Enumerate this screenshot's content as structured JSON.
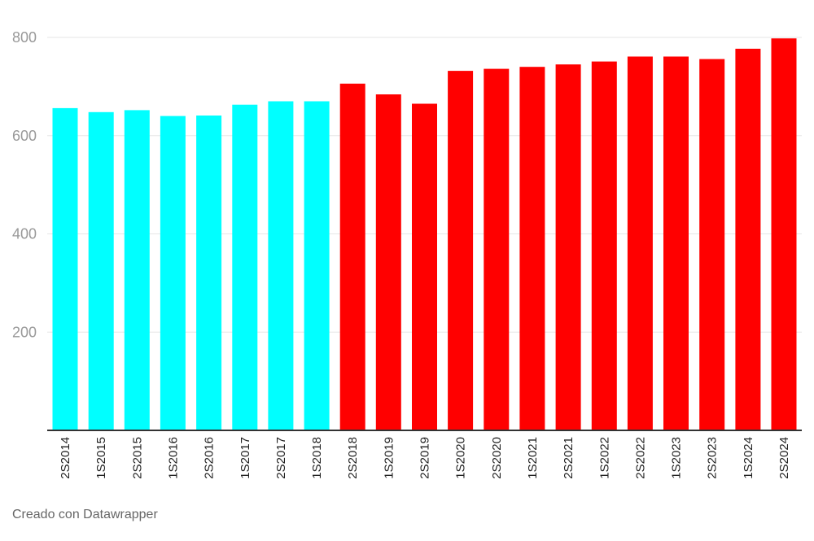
{
  "chart_data": {
    "type": "bar",
    "title": "",
    "xlabel": "",
    "ylabel": "",
    "ylim": [
      0,
      800
    ],
    "yticks": [
      200,
      400,
      600,
      800
    ],
    "grid": true,
    "categories": [
      "2S2014",
      "1S2015",
      "2S2015",
      "1S2016",
      "2S2016",
      "1S2017",
      "2S2017",
      "1S2018",
      "2S2018",
      "1S2019",
      "2S2019",
      "1S2020",
      "2S2020",
      "1S2021",
      "2S2021",
      "1S2022",
      "2S2022",
      "1S2023",
      "2S2023",
      "1S2024",
      "2S2024"
    ],
    "values": [
      656,
      648,
      652,
      640,
      641,
      663,
      670,
      670,
      706,
      684,
      665,
      732,
      736,
      740,
      745,
      751,
      761,
      761,
      756,
      777,
      798
    ],
    "colors": {
      "highlight": "#00FFFF",
      "main": "#FF0000",
      "axis": "#333333",
      "grid": "#e6e6e6"
    },
    "highlight_count": 8
  },
  "footer": {
    "credit": "Creado con Datawrapper"
  }
}
